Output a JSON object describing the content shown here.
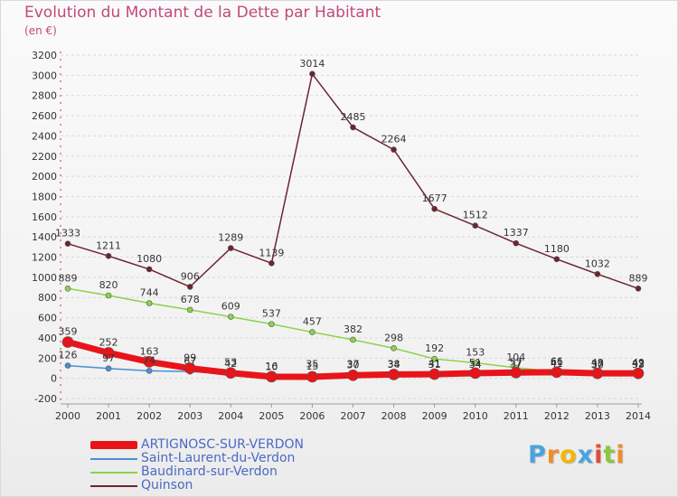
{
  "title": "Evolution du Montant de la Dette par Habitant",
  "subtitle": "(en €)",
  "brand": {
    "letters": [
      "P",
      "r",
      "o",
      "x",
      "i",
      "t",
      "i"
    ],
    "colors": [
      "#4aa3df",
      "#f28c28",
      "#f2b705",
      "#4aa3df",
      "#e04e39",
      "#8cc63f",
      "#f28c28"
    ]
  },
  "chart_data": {
    "type": "line",
    "categories": [
      "2000",
      "2001",
      "2002",
      "2003",
      "2004",
      "2005",
      "2006",
      "2007",
      "2008",
      "2009",
      "2010",
      "2011",
      "2012",
      "2013",
      "2014"
    ],
    "ylim": [
      -200,
      3200
    ],
    "yticks": [
      -200,
      0,
      200,
      400,
      600,
      800,
      1000,
      1200,
      1400,
      1600,
      1800,
      2000,
      2200,
      2400,
      2600,
      2800,
      3000,
      3200
    ],
    "grid": "horizontal",
    "legend_position": "bottom-left",
    "series": [
      {
        "name": "ARTIGNOSC-SUR-VERDON",
        "color": "#e8141a",
        "values": [
          359,
          252,
          163,
          99,
          53,
          16,
          15,
          30,
          38,
          41,
          51,
          57,
          61,
          49,
          49
        ]
      },
      {
        "name": "Saint-Laurent-du-Verdon",
        "color": "#4a8ed6",
        "values": [
          126,
          97,
          74,
          67,
          42,
          10,
          35,
          37,
          34,
          31,
          34,
          37,
          41,
          37,
          42
        ]
      },
      {
        "name": "Baudinard-sur-Verdon",
        "color": "#8cd24a",
        "values": [
          889,
          820,
          744,
          678,
          609,
          537,
          457,
          382,
          298,
          192,
          153,
          104,
          66,
          30,
          33
        ]
      },
      {
        "name": "Quinson",
        "color": "#6e2430",
        "values": [
          1333,
          1211,
          1080,
          906,
          1289,
          1139,
          3014,
          2485,
          2264,
          1677,
          1512,
          1337,
          1180,
          1032,
          889
        ]
      }
    ]
  }
}
